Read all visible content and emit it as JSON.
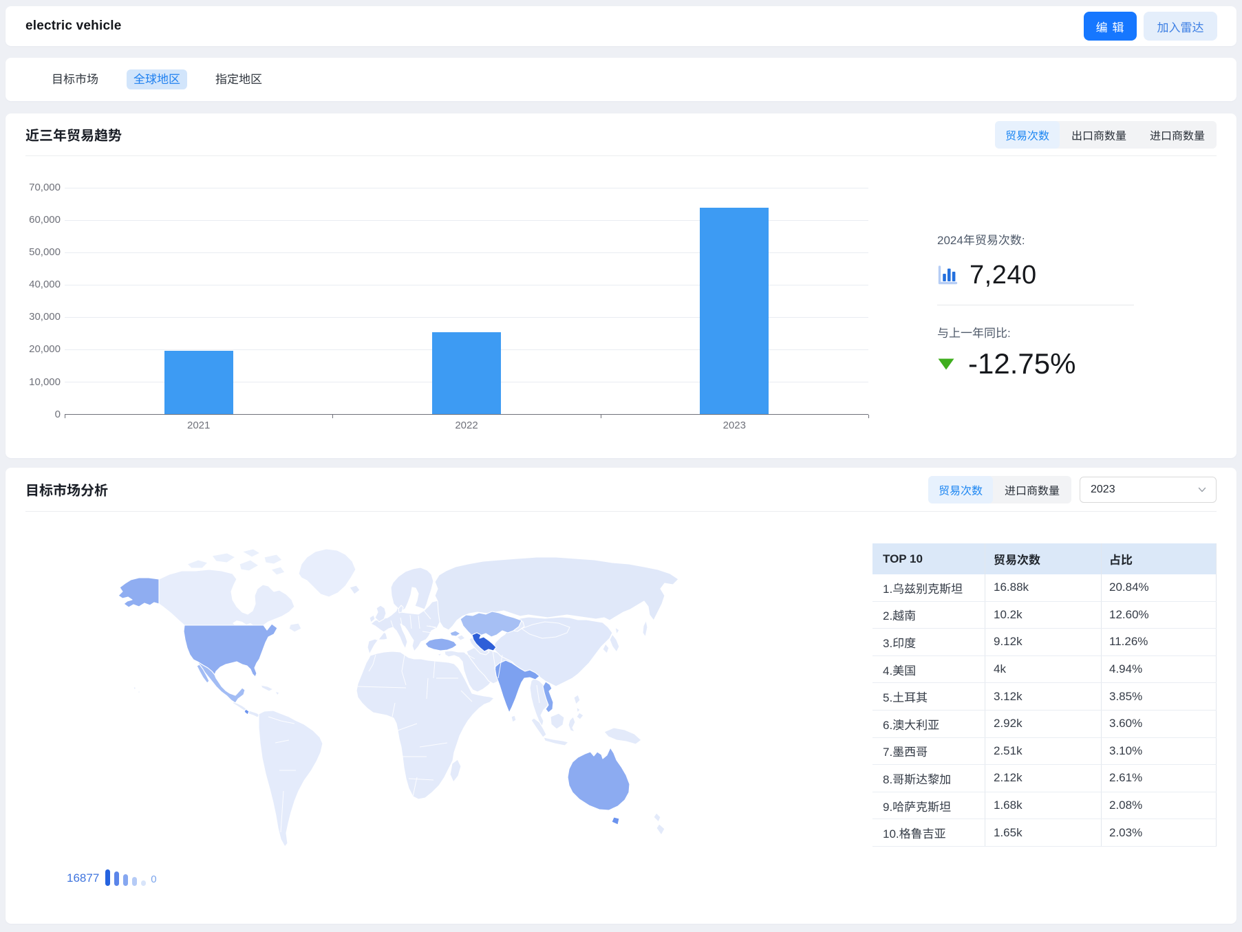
{
  "header": {
    "title": "electric vehicle",
    "edit_button": "编 辑",
    "radar_button": "加入雷达"
  },
  "tabs": [
    {
      "label": "目标市场",
      "active": false
    },
    {
      "label": "全球地区",
      "active": true
    },
    {
      "label": "指定地区",
      "active": false
    }
  ],
  "trend_card": {
    "title": "近三年贸易趋势",
    "toggles": [
      {
        "label": "贸易次数",
        "active": true
      },
      {
        "label": "出口商数量",
        "active": false
      },
      {
        "label": "进口商数量",
        "active": false
      }
    ],
    "summary": {
      "year_label": "2024年贸易次数:",
      "year_value": "7,240",
      "yoy_label": "与上一年同比:",
      "yoy_value": "-12.75%",
      "yoy_direction": "down",
      "yoy_color": "#3fae1e"
    }
  },
  "chart_data": [
    {
      "type": "bar",
      "title": "近三年贸易趋势",
      "categories": [
        "2021",
        "2022",
        "2023"
      ],
      "values": [
        19500,
        25400,
        63700
      ],
      "series_name": "贸易次数",
      "xlabel": "",
      "ylabel": "",
      "ylim": [
        0,
        70000
      ],
      "yticks": [
        0,
        10000,
        20000,
        30000,
        40000,
        50000,
        60000,
        70000
      ],
      "ytick_labels": [
        "0",
        "10,000",
        "20,000",
        "30,000",
        "40,000",
        "50,000",
        "60,000",
        "70,000"
      ],
      "grid": true,
      "legend_position": "none",
      "bar_color": "#3d9bf3"
    },
    {
      "type": "choropleth-map",
      "title": "目标市场分析",
      "metric": "贸易次数",
      "year": "2023",
      "scale_max": 16877,
      "scale_min": 0,
      "regions": [
        {
          "name": "乌兹别克斯坦",
          "value": "16.88k",
          "share": "20.84%"
        },
        {
          "name": "越南",
          "value": "10.2k",
          "share": "12.60%"
        },
        {
          "name": "印度",
          "value": "9.12k",
          "share": "11.26%"
        },
        {
          "name": "美国",
          "value": "4k",
          "share": "4.94%"
        },
        {
          "name": "土耳其",
          "value": "3.12k",
          "share": "3.85%"
        },
        {
          "name": "澳大利亚",
          "value": "2.92k",
          "share": "3.60%"
        },
        {
          "name": "墨西哥",
          "value": "2.51k",
          "share": "3.10%"
        },
        {
          "name": "哥斯达黎加",
          "value": "2.12k",
          "share": "2.61%"
        },
        {
          "name": "哈萨克斯坦",
          "value": "1.68k",
          "share": "2.08%"
        },
        {
          "name": "格鲁吉亚",
          "value": "1.65k",
          "share": "2.03%"
        }
      ]
    }
  ],
  "market_card": {
    "title": "目标市场分析",
    "toggles": [
      {
        "label": "贸易次数",
        "active": true
      },
      {
        "label": "进口商数量",
        "active": false
      }
    ],
    "year_select": "2023",
    "legend": {
      "max": "16877",
      "min": "0",
      "bars": [
        {
          "color": "#2563df",
          "height": 24
        },
        {
          "color": "#5b85e9",
          "height": 21
        },
        {
          "color": "#86a7f0",
          "height": 17
        },
        {
          "color": "#b5cbf6",
          "height": 13
        },
        {
          "color": "#d9e5fa",
          "height": 8
        }
      ]
    },
    "table": {
      "headers": [
        "TOP 10",
        "贸易次数",
        "占比"
      ],
      "rows": [
        [
          "1.乌兹别克斯坦",
          "16.88k",
          "20.84%"
        ],
        [
          "2.越南",
          "10.2k",
          "12.60%"
        ],
        [
          "3.印度",
          "9.12k",
          "11.26%"
        ],
        [
          "4.美国",
          "4k",
          "4.94%"
        ],
        [
          "5.土耳其",
          "3.12k",
          "3.85%"
        ],
        [
          "6.澳大利亚",
          "2.92k",
          "3.60%"
        ],
        [
          "7.墨西哥",
          "2.51k",
          "3.10%"
        ],
        [
          "8.哥斯达黎加",
          "2.12k",
          "2.61%"
        ],
        [
          "9.哈萨克斯坦",
          "1.68k",
          "2.08%"
        ],
        [
          "10.格鲁吉亚",
          "1.65k",
          "2.03%"
        ]
      ]
    }
  },
  "colors": {
    "page_background": "#eef0f5",
    "primary_button_bg": "#1677ff",
    "primary_button_text": "#ffffff",
    "radar_button_bg": "#e4eefb",
    "radar_button_text": "#3d7fe4",
    "selected_pill_bg": "#d2e5fb",
    "selected_pill_text": "#1f80f0",
    "segment_selected_bg": "#e7f1fd",
    "segment_selected_text": "#1e87f2",
    "bar_color": "#3d9bf3",
    "yoy_down_green": "#3fae1e",
    "table_header_bg": "#dbe8f8"
  },
  "map": {
    "base_color": "#e3eafa",
    "border_color": "#ffffff",
    "highlights": {
      "usa": "#8fadf1",
      "alaska": "#8fadf1",
      "mexico": "#a2bcf4",
      "baja": "#a2bcf4",
      "costa-rica": "#6b93ee",
      "turkey": "#8fadf1",
      "georgia": "#9fbaf3",
      "kazakhstan": "#a6bff4",
      "uzbekistan": "#2e5fd8",
      "india": "#7da1f0",
      "vietnam": "#86a8f1",
      "australia": "#8cabf1",
      "tasmania": "#6b93ee"
    }
  }
}
